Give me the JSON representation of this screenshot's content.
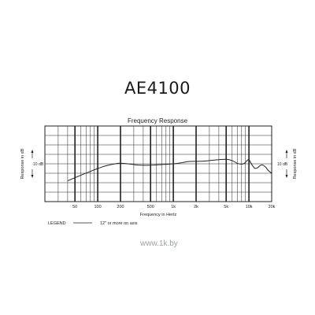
{
  "header": {
    "title": "AE4100"
  },
  "watermark": "www.1k.by",
  "chart_data": {
    "type": "line",
    "title": "Frequency Response",
    "xlabel": "Frequency in Hertz",
    "ylabel": "Response in dB",
    "scale_label": "10 dB",
    "x_scale": "log",
    "xlim": [
      20,
      20000
    ],
    "ylim": [
      -20,
      20
    ],
    "grid": true,
    "x_tick_labels": [
      {
        "value": 50,
        "label": "50"
      },
      {
        "value": 100,
        "label": "100"
      },
      {
        "value": 200,
        "label": "200"
      },
      {
        "value": 500,
        "label": "500"
      },
      {
        "value": 1000,
        "label": "1k"
      },
      {
        "value": 2000,
        "label": "2k"
      },
      {
        "value": 5000,
        "label": "5k"
      },
      {
        "value": 10000,
        "label": "10k"
      },
      {
        "value": 20000,
        "label": "20k"
      }
    ],
    "series": [
      {
        "points": [
          [
            40,
            -9
          ],
          [
            60,
            -6
          ],
          [
            80,
            -4
          ],
          [
            100,
            -2.5
          ],
          [
            130,
            -1
          ],
          [
            170,
            0
          ],
          [
            200,
            0.3
          ],
          [
            250,
            0
          ],
          [
            350,
            -0.7
          ],
          [
            500,
            -0.7
          ],
          [
            700,
            -0.4
          ],
          [
            1000,
            0
          ],
          [
            1300,
            0.6
          ],
          [
            1600,
            1.2
          ],
          [
            2000,
            1.3
          ],
          [
            2500,
            1.4
          ],
          [
            3000,
            1.7
          ],
          [
            4000,
            2.2
          ],
          [
            5000,
            2.4
          ],
          [
            6000,
            1.7
          ],
          [
            7000,
            0.3
          ],
          [
            8000,
            -0.2
          ],
          [
            8800,
            0.4
          ],
          [
            9500,
            1.8
          ],
          [
            10000,
            2.1
          ],
          [
            10600,
            0.5
          ],
          [
            11300,
            -1.3
          ],
          [
            12000,
            -2.4
          ],
          [
            13000,
            -2.1
          ],
          [
            14000,
            -1
          ],
          [
            15000,
            -0.6
          ],
          [
            16500,
            -1.6
          ],
          [
            18000,
            -3.5
          ],
          [
            20000,
            -5
          ]
        ]
      }
    ],
    "legend": {
      "position": "bottom-left",
      "title": "LEGEND",
      "entries": [
        "12\" or more on axis"
      ]
    }
  }
}
